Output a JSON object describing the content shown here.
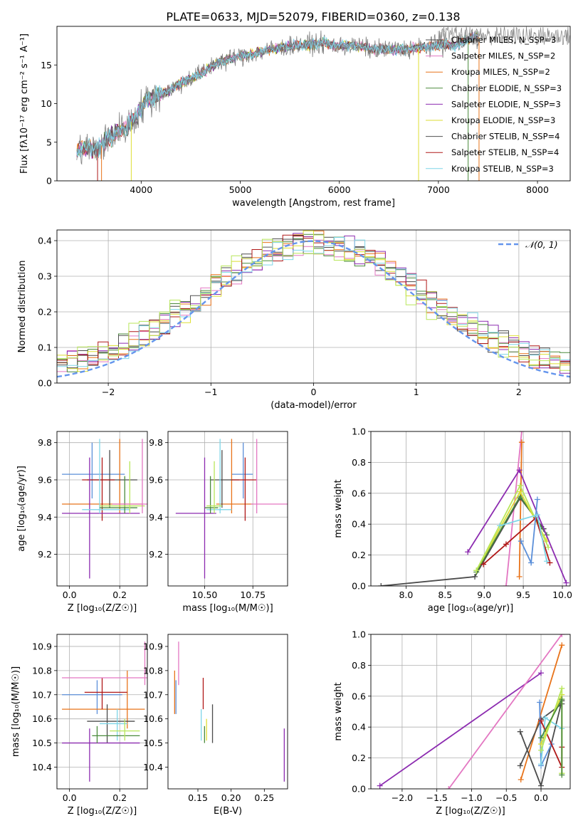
{
  "figure": {
    "title": "PLATE=0633, MJD=52079, FIBERID=0360, z=0.138"
  },
  "colors": {
    "Chabrier MILES": "#4b4b4b",
    "Salpeter MILES": "#e377c2",
    "Kroupa MILES": "#e8731a",
    "Chabrier ELODIE": "#4a8a3c",
    "Salpeter ELODIE": "#8c2bb0",
    "Kroupa ELODIE": "#dede33",
    "Chabrier STELIB": "#505050",
    "Salpeter STELIB": "#b01818",
    "Kroupa STELIB": "#7fd6e8",
    "spectrum_gray": "#808080",
    "normal_curve": "#6495ed",
    "light_green": "#b8e65a",
    "blue": "#5b8fd9"
  },
  "chart_data": [
    {
      "id": "spectrum",
      "type": "line",
      "xlabel": "wavelength [Angstrom, rest frame]",
      "ylabel": "Flux [fλ10⁻¹⁷ erg cm⁻² s⁻¹ A⁻¹]",
      "xlim": [
        3150,
        8330
      ],
      "ylim": [
        0,
        20
      ],
      "xticks": [
        4000,
        5000,
        6000,
        7000,
        8000
      ],
      "yticks": [
        0,
        5,
        10,
        15
      ],
      "legend_position": "top-right",
      "legend": [
        {
          "label": "Chabrier MILES, N_SSP=3",
          "color": "#4b4b4b"
        },
        {
          "label": "Salpeter MILES, N_SSP=2",
          "color": "#e377c2"
        },
        {
          "label": "Kroupa MILES, N_SSP=2",
          "color": "#e8731a"
        },
        {
          "label": "Chabrier ELODIE, N_SSP=3",
          "color": "#4a8a3c"
        },
        {
          "label": "Salpeter ELODIE, N_SSP=3",
          "color": "#8c2bb0"
        },
        {
          "label": "Kroupa ELODIE, N_SSP=3",
          "color": "#dede33"
        },
        {
          "label": "Chabrier STELIB, N_SSP=4",
          "color": "#505050"
        },
        {
          "label": "Salpeter STELIB, N_SSP=4",
          "color": "#b01818"
        },
        {
          "label": "Kroupa STELIB, N_SSP=3",
          "color": "#7fd6e8"
        }
      ],
      "continuum": [
        [
          3350,
          3.8
        ],
        [
          3450,
          4.2
        ],
        [
          3550,
          4.0
        ],
        [
          3650,
          5.2
        ],
        [
          3750,
          6.3
        ],
        [
          3850,
          7.0
        ],
        [
          3950,
          8.3
        ],
        [
          4050,
          10.5
        ],
        [
          4150,
          11.0
        ],
        [
          4250,
          11.5
        ],
        [
          4350,
          12.2
        ],
        [
          4450,
          13.0
        ],
        [
          4550,
          13.6
        ],
        [
          4650,
          14.2
        ],
        [
          4750,
          15.2
        ],
        [
          4850,
          15.6
        ],
        [
          4950,
          16.0
        ],
        [
          5050,
          16.3
        ],
        [
          5150,
          16.5
        ],
        [
          5250,
          16.9
        ],
        [
          5350,
          17.1
        ],
        [
          5450,
          17.3
        ],
        [
          5550,
          17.5
        ],
        [
          5650,
          17.6
        ],
        [
          5750,
          17.7
        ],
        [
          5850,
          17.8
        ],
        [
          5950,
          17.5
        ],
        [
          6050,
          17.5
        ],
        [
          6150,
          17.4
        ],
        [
          6250,
          17.3
        ],
        [
          6350,
          17.0
        ],
        [
          6450,
          17.1
        ],
        [
          6550,
          17.0
        ],
        [
          6650,
          17.0
        ],
        [
          6750,
          17.2
        ],
        [
          6850,
          17.3
        ],
        [
          6950,
          17.4
        ],
        [
          7050,
          17.7
        ],
        [
          7150,
          17.5
        ],
        [
          7250,
          18.0
        ],
        [
          7350,
          18.6
        ]
      ]
    },
    {
      "id": "residuals",
      "type": "line",
      "xlabel": "(data-model)/error",
      "ylabel": "Normed distribution",
      "xlim": [
        -2.5,
        2.5
      ],
      "ylim": [
        0,
        0.43
      ],
      "xticks": [
        -2,
        -1,
        0,
        1,
        2
      ],
      "yticks": [
        0.0,
        0.1,
        0.2,
        0.3,
        0.4
      ],
      "grid": true,
      "legend_position": "top-right",
      "legend_label": "𝒩(0, 1)",
      "bin_width": 0.1
    },
    {
      "id": "age-vs-Z",
      "type": "scatter",
      "xlabel": "Z [log₁₀(Z/Z☉)]",
      "ylabel": "age  [log₁₀(age/yr)]",
      "xlim": [
        -0.05,
        0.31
      ],
      "ylim": [
        9.03,
        9.86
      ],
      "xticks": [
        0.0,
        0.2
      ],
      "yticks": [
        9.2,
        9.4,
        9.6,
        9.8
      ],
      "grid": true,
      "points": [
        {
          "x": 0.09,
          "y": 9.63,
          "xlo": -0.03,
          "xhi": 0.22,
          "ylo": 9.5,
          "yhi": 9.8,
          "color": "#5b8fd9"
        },
        {
          "x": 0.2,
          "y": 9.47,
          "xlo": -0.03,
          "xhi": 0.29,
          "ylo": 9.42,
          "yhi": 9.82,
          "color": "#e8731a"
        },
        {
          "x": 0.16,
          "y": 9.6,
          "xlo": 0.07,
          "xhi": 0.27,
          "ylo": 9.45,
          "yhi": 9.76,
          "color": "#4b4b4b"
        },
        {
          "x": 0.13,
          "y": 9.6,
          "xlo": 0.05,
          "xhi": 0.18,
          "ylo": 9.38,
          "yhi": 9.72,
          "color": "#b01818"
        },
        {
          "x": 0.08,
          "y": 9.42,
          "xlo": -0.03,
          "xhi": 0.28,
          "ylo": 9.07,
          "yhi": 9.72,
          "color": "#8c2bb0"
        },
        {
          "x": 0.12,
          "y": 9.44,
          "xlo": 0.05,
          "xhi": 0.24,
          "ylo": 9.42,
          "yhi": 9.82,
          "color": "#7fd6e8"
        },
        {
          "x": 0.22,
          "y": 9.45,
          "xlo": 0.12,
          "xhi": 0.27,
          "ylo": 9.42,
          "yhi": 9.62,
          "color": "#4a8a3c"
        },
        {
          "x": 0.24,
          "y": 9.46,
          "xlo": 0.12,
          "xhi": 0.3,
          "ylo": 9.42,
          "yhi": 9.7,
          "color": "#b8e65a"
        },
        {
          "x": 0.29,
          "y": 9.47,
          "xlo": 0.17,
          "xhi": 0.31,
          "ylo": 9.42,
          "yhi": 9.82,
          "color": "#e377c2"
        }
      ]
    },
    {
      "id": "age-vs-mass",
      "type": "scatter",
      "xlabel": "mass [log₁₀(M/M☉)]",
      "ylabel": "",
      "xlim": [
        10.31,
        10.93
      ],
      "ylim": [
        9.03,
        9.86
      ],
      "xticks": [
        10.5,
        10.75
      ],
      "xtick_labels": [
        "10.50",
        "10.75"
      ],
      "yticks": [
        9.2,
        9.4,
        9.6,
        9.8
      ],
      "grid": true,
      "points": [
        {
          "x": 10.7,
          "y": 9.63,
          "xlo": 10.64,
          "xhi": 10.75,
          "ylo": 9.5,
          "yhi": 9.8,
          "color": "#5b8fd9"
        },
        {
          "x": 10.64,
          "y": 9.47,
          "xlo": 10.56,
          "xhi": 10.75,
          "ylo": 9.42,
          "yhi": 9.82,
          "color": "#e8731a"
        },
        {
          "x": 10.59,
          "y": 9.6,
          "xlo": 10.53,
          "xhi": 10.68,
          "ylo": 9.45,
          "yhi": 9.76,
          "color": "#4b4b4b"
        },
        {
          "x": 10.71,
          "y": 9.6,
          "xlo": 10.64,
          "xhi": 10.77,
          "ylo": 9.38,
          "yhi": 9.72,
          "color": "#b01818"
        },
        {
          "x": 10.5,
          "y": 9.42,
          "xlo": 10.35,
          "xhi": 10.56,
          "ylo": 9.07,
          "yhi": 9.72,
          "color": "#8c2bb0"
        },
        {
          "x": 10.58,
          "y": 9.44,
          "xlo": 10.51,
          "xhi": 10.64,
          "ylo": 9.42,
          "yhi": 9.82,
          "color": "#7fd6e8"
        },
        {
          "x": 10.53,
          "y": 9.45,
          "xlo": 10.5,
          "xhi": 10.57,
          "ylo": 9.42,
          "yhi": 9.62,
          "color": "#4a8a3c"
        },
        {
          "x": 10.55,
          "y": 9.46,
          "xlo": 10.51,
          "xhi": 10.59,
          "ylo": 9.42,
          "yhi": 9.7,
          "color": "#b8e65a"
        },
        {
          "x": 10.77,
          "y": 9.47,
          "xlo": 10.74,
          "xhi": 10.93,
          "ylo": 9.42,
          "yhi": 9.82,
          "color": "#e377c2"
        }
      ]
    },
    {
      "id": "massweight-vs-age",
      "type": "line",
      "xlabel": "age  [log₁₀(age/yr)]",
      "ylabel": "mass weight",
      "xlim": [
        7.55,
        10.1
      ],
      "ylim": [
        0,
        1
      ],
      "xticks": [
        8.0,
        8.5,
        9.0,
        9.5,
        10.0
      ],
      "yticks": [
        0.0,
        0.2,
        0.4,
        0.6,
        0.8,
        1.0
      ],
      "grid": true,
      "series": [
        {
          "color": "#e377c2",
          "points": [
            [
              9.28,
              0.0
            ],
            [
              9.48,
              1.0
            ]
          ]
        },
        {
          "color": "#e8731a",
          "points": [
            [
              9.45,
              0.06
            ],
            [
              9.48,
              0.93
            ]
          ]
        },
        {
          "color": "#4b4b4b",
          "points": [
            [
              7.68,
              0.0
            ],
            [
              8.88,
              0.06
            ],
            [
              9.46,
              0.57
            ],
            [
              9.76,
              0.37
            ]
          ]
        },
        {
          "color": "#4a8a3c",
          "points": [
            [
              8.9,
              0.09
            ],
            [
              9.46,
              0.58
            ],
            [
              9.8,
              0.33
            ]
          ]
        },
        {
          "color": "#dede33",
          "points": [
            [
              8.9,
              0.1
            ],
            [
              9.46,
              0.61
            ],
            [
              9.8,
              0.29
            ]
          ]
        },
        {
          "color": "#b8e65a",
          "points": [
            [
              8.9,
              0.1
            ],
            [
              9.46,
              0.65
            ],
            [
              9.82,
              0.25
            ]
          ]
        },
        {
          "color": "#8c2bb0",
          "points": [
            [
              8.79,
              0.22
            ],
            [
              9.45,
              0.75
            ],
            [
              10.05,
              0.02
            ]
          ]
        },
        {
          "color": "#b01818",
          "points": [
            [
              8.99,
              0.14
            ],
            [
              9.28,
              0.27
            ],
            [
              9.66,
              0.44
            ],
            [
              9.84,
              0.15
            ]
          ]
        },
        {
          "color": "#5b8fd9",
          "points": [
            [
              9.47,
              0.29
            ],
            [
              9.6,
              0.15
            ],
            [
              9.68,
              0.56
            ]
          ]
        },
        {
          "color": "#7fd6e8",
          "points": [
            [
              9.2,
              0.39
            ],
            [
              9.68,
              0.46
            ],
            [
              9.8,
              0.16
            ]
          ]
        }
      ]
    },
    {
      "id": "mass-vs-Z",
      "type": "scatter",
      "xlabel": "Z [log₁₀(Z/Z☉)]",
      "ylabel": "mass [log₁₀(M/M☉)]",
      "xlim": [
        -0.05,
        0.31
      ],
      "ylim": [
        10.31,
        10.95
      ],
      "xticks": [
        0.0,
        0.2
      ],
      "yticks": [
        10.4,
        10.5,
        10.6,
        10.7,
        10.8,
        10.9
      ],
      "grid": true,
      "points": [
        {
          "x": 0.11,
          "y": 10.7,
          "xlo": -0.03,
          "xhi": 0.21,
          "ylo": 10.62,
          "yhi": 10.76,
          "color": "#5b8fd9"
        },
        {
          "x": 0.23,
          "y": 10.64,
          "xlo": -0.03,
          "xhi": 0.3,
          "ylo": 10.56,
          "yhi": 10.8,
          "color": "#e8731a"
        },
        {
          "x": 0.15,
          "y": 10.59,
          "xlo": 0.07,
          "xhi": 0.26,
          "ylo": 10.5,
          "yhi": 10.66,
          "color": "#4b4b4b"
        },
        {
          "x": 0.13,
          "y": 10.71,
          "xlo": 0.06,
          "xhi": 0.23,
          "ylo": 10.64,
          "yhi": 10.77,
          "color": "#b01818"
        },
        {
          "x": 0.08,
          "y": 10.5,
          "xlo": -0.03,
          "xhi": 0.28,
          "ylo": 10.34,
          "yhi": 10.56,
          "color": "#8c2bb0"
        },
        {
          "x": 0.19,
          "y": 10.58,
          "xlo": 0.12,
          "xhi": 0.23,
          "ylo": 10.51,
          "yhi": 10.64,
          "color": "#7fd6e8"
        },
        {
          "x": 0.11,
          "y": 10.53,
          "xlo": 0.09,
          "xhi": 0.28,
          "ylo": 10.5,
          "yhi": 10.57,
          "color": "#4a8a3c"
        },
        {
          "x": 0.22,
          "y": 10.55,
          "xlo": 0.16,
          "xhi": 0.28,
          "ylo": 10.51,
          "yhi": 10.6,
          "color": "#b8e65a"
        },
        {
          "x": 0.3,
          "y": 10.77,
          "xlo": -0.03,
          "xhi": 0.31,
          "ylo": 10.74,
          "yhi": 10.92,
          "color": "#e377c2"
        }
      ]
    },
    {
      "id": "mass-vs-ebv",
      "type": "scatter",
      "xlabel": "E(B-V)",
      "ylabel": "",
      "xlim": [
        0.105,
        0.285
      ],
      "ylim": [
        10.31,
        10.95
      ],
      "xticks": [
        0.15,
        0.2,
        0.25
      ],
      "xtick_labels": [
        "0.15",
        "0.20",
        "0.25"
      ],
      "yticks": [
        10.4,
        10.5,
        10.6,
        10.7,
        10.8,
        10.9
      ],
      "grid": false,
      "points": [
        {
          "x": 0.117,
          "y": 10.7,
          "ylo": 10.62,
          "yhi": 10.76,
          "color": "#5b8fd9"
        },
        {
          "x": 0.115,
          "y": 10.64,
          "ylo": 10.62,
          "yhi": 10.8,
          "color": "#e8731a"
        },
        {
          "x": 0.172,
          "y": 10.59,
          "ylo": 10.5,
          "yhi": 10.66,
          "color": "#4b4b4b"
        },
        {
          "x": 0.158,
          "y": 10.71,
          "ylo": 10.64,
          "yhi": 10.77,
          "color": "#b01818"
        },
        {
          "x": 0.28,
          "y": 10.5,
          "ylo": 10.34,
          "yhi": 10.56,
          "color": "#8c2bb0"
        },
        {
          "x": 0.155,
          "y": 10.58,
          "ylo": 10.51,
          "yhi": 10.64,
          "color": "#7fd6e8"
        },
        {
          "x": 0.16,
          "y": 10.53,
          "ylo": 10.5,
          "yhi": 10.57,
          "color": "#4a8a3c"
        },
        {
          "x": 0.163,
          "y": 10.55,
          "ylo": 10.51,
          "yhi": 10.6,
          "color": "#dede33"
        },
        {
          "x": 0.121,
          "y": 10.77,
          "ylo": 10.74,
          "yhi": 10.92,
          "color": "#e377c2"
        }
      ]
    },
    {
      "id": "massweight-vs-Z",
      "type": "line",
      "xlabel": "Z [log₁₀(Z/Z☉)]",
      "ylabel": "mass weight",
      "xlim": [
        -2.45,
        0.42
      ],
      "ylim": [
        0,
        1
      ],
      "xticks": [
        -2.0,
        -1.5,
        -1.0,
        -0.5,
        0.0
      ],
      "yticks": [
        0.0,
        0.2,
        0.4,
        0.6,
        0.8,
        1.0
      ],
      "grid": true,
      "series": [
        {
          "color": "#8c2bb0",
          "points": [
            [
              -2.32,
              0.02
            ],
            [
              0.0,
              0.75
            ]
          ]
        },
        {
          "color": "#e377c2",
          "points": [
            [
              -1.33,
              0.0
            ],
            [
              0.3,
              1.0
            ]
          ]
        },
        {
          "color": "#e8731a",
          "points": [
            [
              -0.29,
              0.06
            ],
            [
              0.3,
              0.93
            ]
          ]
        },
        {
          "color": "#4b4b4b",
          "points": [
            [
              -0.3,
              0.37
            ],
            [
              0.0,
              0.02
            ],
            [
              0.3,
              0.57
            ]
          ]
        },
        {
          "color": "#505050",
          "points": [
            [
              -0.3,
              0.15
            ],
            [
              0.0,
              0.45
            ],
            [
              0.3,
              0.55
            ]
          ]
        },
        {
          "color": "#5b8fd9",
          "points": [
            [
              -0.02,
              0.56
            ],
            [
              0.0,
              0.15
            ],
            [
              0.15,
              0.29
            ]
          ]
        },
        {
          "color": "#7fd6e8",
          "points": [
            [
              0.0,
              0.16
            ],
            [
              0.06,
              0.46
            ],
            [
              0.3,
              0.39
            ]
          ]
        },
        {
          "color": "#b01818",
          "points": [
            [
              0.0,
              0.44
            ],
            [
              0.3,
              0.14
            ],
            [
              0.3,
              0.27
            ]
          ]
        },
        {
          "color": "#dede33",
          "points": [
            [
              0.0,
              0.29
            ],
            [
              0.3,
              0.61
            ],
            [
              0.3,
              0.1
            ]
          ]
        },
        {
          "color": "#b8e65a",
          "points": [
            [
              0.0,
              0.25
            ],
            [
              0.3,
              0.65
            ],
            [
              0.3,
              0.1
            ]
          ]
        },
        {
          "color": "#4a8a3c",
          "points": [
            [
              0.0,
              0.33
            ],
            [
              0.3,
              0.58
            ],
            [
              0.3,
              0.09
            ]
          ]
        }
      ]
    }
  ]
}
